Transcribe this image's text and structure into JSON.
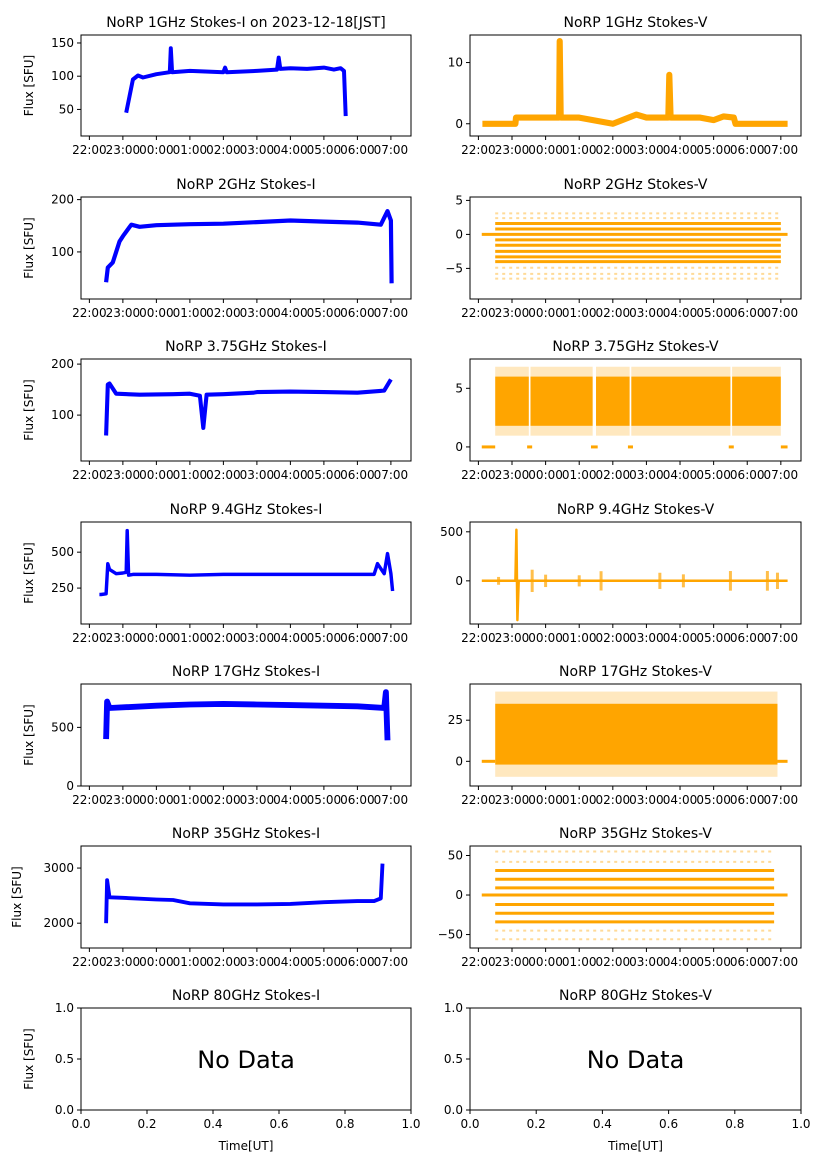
{
  "figure": {
    "date_label": "2023-12-18[JST]",
    "colors": {
      "stokes_i": "#0000ff",
      "stokes_v": "#ffa500"
    }
  },
  "chart_data": [
    {
      "id": "1ghz-i",
      "type": "scatter",
      "title": "NoRP 1GHz Stokes-I on 2023-12-18[JST]",
      "ylabel": "Flux [SFU]",
      "xlabel": "",
      "series_color": "stokes_i",
      "xlim_hours": [
        -0.25,
        9.6
      ],
      "ylim": [
        10,
        162
      ],
      "yticks": [
        50,
        100,
        150
      ],
      "xticks": [
        "22:00",
        "23:00",
        "00:00",
        "01:00",
        "02:00",
        "03:00",
        "04:00",
        "05:00",
        "06:00",
        "07:00"
      ],
      "x_hours": [
        1.1,
        1.3,
        1.45,
        1.6,
        2.0,
        2.4,
        2.43,
        2.47,
        3.0,
        4.0,
        4.05,
        4.1,
        5.0,
        5.6,
        5.65,
        5.7,
        6.0,
        6.5,
        7.0,
        7.3,
        7.5,
        7.6,
        7.65
      ],
      "values": [
        45,
        95,
        101,
        98,
        103,
        106,
        142,
        106,
        108,
        106,
        113,
        106,
        108,
        110,
        128,
        111,
        112,
        111,
        113,
        110,
        112,
        108,
        40
      ],
      "band": 3,
      "no_data": false
    },
    {
      "id": "1ghz-v",
      "type": "scatter",
      "title": "NoRP 1GHz Stokes-V",
      "ylabel": "",
      "xlabel": "",
      "series_color": "stokes_v",
      "xlim_hours": [
        -0.25,
        9.6
      ],
      "ylim": [
        -2,
        14.5
      ],
      "yticks": [
        0,
        10
      ],
      "xticks": [
        "22:00",
        "23:00",
        "00:00",
        "01:00",
        "02:00",
        "03:00",
        "04:00",
        "05:00",
        "06:00",
        "07:00"
      ],
      "x_hours": [
        0.12,
        1.1,
        1.12,
        2.0,
        2.4,
        2.42,
        2.45,
        3.0,
        4.0,
        4.7,
        5.0,
        5.65,
        5.68,
        5.72,
        6.2,
        6.6,
        7.0,
        7.3,
        7.6,
        7.65,
        9.2
      ],
      "values": [
        0,
        0,
        1,
        1,
        1,
        13.5,
        1,
        1,
        0,
        1.5,
        1,
        1,
        8,
        1,
        1,
        1,
        0.6,
        1.2,
        1,
        0,
        0
      ],
      "band": 0.5,
      "no_data": false
    },
    {
      "id": "2ghz-i",
      "type": "scatter",
      "title": "NoRP 2GHz Stokes-I",
      "ylabel": "Flux [SFU]",
      "xlabel": "",
      "series_color": "stokes_i",
      "xlim_hours": [
        -0.25,
        9.6
      ],
      "ylim": [
        10,
        205
      ],
      "yticks": [
        100,
        200
      ],
      "xticks": [
        "22:00",
        "23:00",
        "00:00",
        "01:00",
        "02:00",
        "03:00",
        "04:00",
        "05:00",
        "06:00",
        "07:00"
      ],
      "x_hours": [
        0.5,
        0.55,
        0.7,
        0.9,
        1.0,
        1.25,
        1.5,
        2.0,
        3.0,
        4.0,
        5.0,
        6.0,
        7.0,
        8.0,
        8.7,
        8.9,
        9.0,
        9.02
      ],
      "values": [
        42,
        70,
        80,
        120,
        130,
        152,
        148,
        151,
        153,
        154,
        157,
        160,
        158,
        156,
        152,
        178,
        160,
        40
      ],
      "band": 4,
      "no_data": false
    },
    {
      "id": "2ghz-v",
      "type": "levels",
      "title": "NoRP 2GHz Stokes-V",
      "ylabel": "",
      "xlabel": "",
      "series_color": "stokes_v",
      "xlim_hours": [
        -0.25,
        9.6
      ],
      "ylim": [
        -9.5,
        5.5
      ],
      "yticks": [
        -5,
        0,
        5
      ],
      "xticks": [
        "22:00",
        "23:00",
        "00:00",
        "01:00",
        "02:00",
        "03:00",
        "04:00",
        "05:00",
        "06:00",
        "07:00"
      ],
      "data_span_hours": [
        0.5,
        9.0
      ],
      "baseline_span_hours": [
        0.1,
        9.2
      ],
      "levels": [
        -4.0,
        -3.3,
        -2.5,
        -1.6,
        -0.8,
        0.8,
        1.6
      ],
      "sparse_levels": [
        -5.8,
        -4.9,
        2.4,
        3.1,
        -6.5
      ],
      "no_data": false
    },
    {
      "id": "3.75ghz-i",
      "type": "scatter",
      "title": "NoRP 3.75GHz Stokes-I",
      "ylabel": "Flux [SFU]",
      "xlabel": "",
      "series_color": "stokes_i",
      "xlim_hours": [
        -0.25,
        9.6
      ],
      "ylim": [
        10,
        210
      ],
      "yticks": [
        100,
        200
      ],
      "xticks": [
        "22:00",
        "23:00",
        "00:00",
        "01:00",
        "02:00",
        "03:00",
        "04:00",
        "05:00",
        "06:00",
        "07:00"
      ],
      "x_hours": [
        0.5,
        0.55,
        0.6,
        0.8,
        1.5,
        2.5,
        3.0,
        3.3,
        3.4,
        3.45,
        3.5,
        4.0,
        4.9,
        5.0,
        6.0,
        7.0,
        8.0,
        8.8,
        9.0
      ],
      "values": [
        60,
        160,
        162,
        142,
        140,
        141,
        142,
        138,
        75,
        null,
        140,
        141,
        144,
        145,
        146,
        145,
        144,
        148,
        170
      ],
      "band": 4,
      "no_data": false
    },
    {
      "id": "3.75ghz-v",
      "type": "block",
      "title": "NoRP 3.75GHz Stokes-V",
      "ylabel": "",
      "xlabel": "",
      "series_color": "stokes_v",
      "xlim_hours": [
        -0.25,
        9.6
      ],
      "ylim": [
        -1.2,
        7.5
      ],
      "yticks": [
        0,
        5
      ],
      "xticks": [
        "22:00",
        "23:00",
        "00:00",
        "01:00",
        "02:00",
        "03:00",
        "04:00",
        "05:00",
        "06:00",
        "07:00"
      ],
      "blocks_hours": [
        [
          0.5,
          1.5
        ],
        [
          1.55,
          3.4
        ],
        [
          3.5,
          4.5
        ],
        [
          4.55,
          7.5
        ],
        [
          7.55,
          9.0
        ]
      ],
      "block_range": [
        1.8,
        6.0
      ],
      "zero_segments_hours": [
        [
          0.1,
          0.5
        ],
        [
          1.45,
          1.6
        ],
        [
          3.35,
          3.55
        ],
        [
          4.45,
          4.6
        ],
        [
          7.45,
          7.6
        ],
        [
          9.0,
          9.2
        ]
      ],
      "no_data": false
    },
    {
      "id": "9.4ghz-i",
      "type": "scatter",
      "title": "NoRP 9.4GHz Stokes-I",
      "ylabel": "Flux [SFU]",
      "xlabel": "",
      "series_color": "stokes_i",
      "xlim_hours": [
        -0.25,
        9.6
      ],
      "ylim": [
        0,
        710
      ],
      "yticks": [
        250,
        500
      ],
      "xticks": [
        "22:00",
        "23:00",
        "00:00",
        "01:00",
        "02:00",
        "03:00",
        "04:00",
        "05:00",
        "06:00",
        "07:00"
      ],
      "x_hours": [
        0.3,
        0.35,
        0.5,
        0.55,
        0.6,
        0.8,
        1.0,
        1.1,
        1.13,
        1.17,
        1.3,
        2.0,
        3.0,
        4.0,
        5.0,
        6.0,
        7.0,
        8.0,
        8.5,
        8.6,
        8.8,
        8.9,
        9.0,
        9.05
      ],
      "values": [
        205,
        205,
        210,
        420,
        380,
        350,
        355,
        360,
        650,
        340,
        345,
        345,
        340,
        345,
        345,
        345,
        345,
        345,
        345,
        420,
        350,
        490,
        350,
        230
      ],
      "band": 12,
      "no_data": false
    },
    {
      "id": "9.4ghz-v",
      "type": "scatter",
      "title": "NoRP 9.4GHz Stokes-V",
      "ylabel": "",
      "xlabel": "",
      "series_color": "stokes_v",
      "xlim_hours": [
        -0.25,
        9.6
      ],
      "ylim": [
        -440,
        600
      ],
      "yticks": [
        0,
        500
      ],
      "xticks": [
        "22:00",
        "23:00",
        "00:00",
        "01:00",
        "02:00",
        "03:00",
        "04:00",
        "05:00",
        "06:00",
        "07:00"
      ],
      "x_hours": [
        0.1,
        1.1,
        1.13,
        1.16,
        1.2,
        9.2
      ],
      "values": [
        0,
        0,
        520,
        -400,
        0,
        0
      ],
      "spikes_hours": [
        0.6,
        1.6,
        2.0,
        3.0,
        3.65,
        5.4,
        6.1,
        7.5,
        8.6,
        8.9
      ],
      "band": 6,
      "no_data": false
    },
    {
      "id": "17ghz-i",
      "type": "scatter",
      "title": "NoRP 17GHz Stokes-I",
      "ylabel": "Flux [SFU]",
      "xlabel": "",
      "series_color": "stokes_i",
      "xlim_hours": [
        -0.25,
        9.6
      ],
      "ylim": [
        0,
        870
      ],
      "yticks": [
        0,
        500
      ],
      "xticks": [
        "22:00",
        "23:00",
        "00:00",
        "01:00",
        "02:00",
        "03:00",
        "04:00",
        "05:00",
        "06:00",
        "07:00"
      ],
      "x_hours": [
        0.5,
        0.53,
        0.6,
        2.0,
        3.0,
        4.0,
        5.0,
        6.0,
        7.0,
        8.0,
        8.8,
        8.85,
        8.9
      ],
      "values": [
        400,
        720,
        665,
        685,
        695,
        700,
        695,
        690,
        685,
        680,
        665,
        800,
        390
      ],
      "band": 25,
      "no_data": false
    },
    {
      "id": "17ghz-v",
      "type": "block",
      "title": "NoRP 17GHz Stokes-V",
      "ylabel": "",
      "xlabel": "",
      "series_color": "stokes_v",
      "xlim_hours": [
        -0.25,
        9.6
      ],
      "ylim": [
        -15,
        47
      ],
      "yticks": [
        0,
        25
      ],
      "xticks": [
        "22:00",
        "23:00",
        "00:00",
        "01:00",
        "02:00",
        "03:00",
        "04:00",
        "05:00",
        "06:00",
        "07:00"
      ],
      "blocks_hours": [
        [
          0.5,
          8.9
        ]
      ],
      "block_range": [
        -2,
        35
      ],
      "zero_segments_hours": [
        [
          0.1,
          0.5
        ],
        [
          8.9,
          9.2
        ]
      ],
      "no_data": false
    },
    {
      "id": "35ghz-i",
      "type": "scatter",
      "title": "NoRP 35GHz Stokes-I",
      "ylabel": "Flux [SFU]",
      "xlabel": "",
      "series_color": "stokes_i",
      "xlim_hours": [
        -0.25,
        9.6
      ],
      "ylim": [
        1550,
        3400
      ],
      "yticks": [
        2000,
        3000
      ],
      "xticks": [
        "22:00",
        "23:00",
        "00:00",
        "01:00",
        "02:00",
        "03:00",
        "04:00",
        "05:00",
        "06:00",
        "07:00"
      ],
      "x_hours": [
        0.5,
        0.53,
        0.6,
        1.0,
        2.0,
        2.5,
        3.0,
        4.0,
        5.0,
        6.0,
        7.0,
        8.0,
        8.5,
        8.7,
        8.75
      ],
      "values": [
        2000,
        2780,
        2470,
        2460,
        2430,
        2420,
        2360,
        2340,
        2340,
        2350,
        2380,
        2400,
        2400,
        2450,
        3080
      ],
      "band": 35,
      "no_data": false
    },
    {
      "id": "35ghz-v",
      "type": "levels",
      "title": "NoRP 35GHz Stokes-V",
      "ylabel": "",
      "xlabel": "",
      "series_color": "stokes_v",
      "xlim_hours": [
        -0.25,
        9.6
      ],
      "ylim": [
        -67,
        62
      ],
      "yticks": [
        -50,
        0,
        50
      ],
      "xticks": [
        "22:00",
        "23:00",
        "00:00",
        "01:00",
        "02:00",
        "03:00",
        "04:00",
        "05:00",
        "06:00",
        "07:00"
      ],
      "data_span_hours": [
        0.5,
        8.8
      ],
      "baseline_span_hours": [
        0.1,
        9.2
      ],
      "levels": [
        -34,
        -23,
        -12,
        9,
        20,
        31
      ],
      "sparse_levels": [
        -45,
        42,
        55,
        -56
      ],
      "no_data": false
    },
    {
      "id": "80ghz-i",
      "type": "scatter",
      "title": "NoRP 80GHz Stokes-I",
      "ylabel": "Flux [SFU]",
      "xlabel": "Time[UT]",
      "series_color": "stokes_i",
      "xlim": [
        0,
        1
      ],
      "ylim": [
        0,
        1
      ],
      "yticks": [
        "0.0",
        "0.5",
        "1.0"
      ],
      "xticks": [
        "0.0",
        "0.2",
        "0.4",
        "0.6",
        "0.8",
        "1.0"
      ],
      "no_data": true,
      "annotation": "No Data"
    },
    {
      "id": "80ghz-v",
      "type": "scatter",
      "title": "NoRP 80GHz Stokes-V",
      "ylabel": "",
      "xlabel": "Time[UT]",
      "series_color": "stokes_v",
      "xlim": [
        0,
        1
      ],
      "ylim": [
        0,
        1
      ],
      "yticks": [
        "0.0",
        "0.5",
        "1.0"
      ],
      "xticks": [
        "0.0",
        "0.2",
        "0.4",
        "0.6",
        "0.8",
        "1.0"
      ],
      "no_data": true,
      "annotation": "No Data"
    }
  ]
}
